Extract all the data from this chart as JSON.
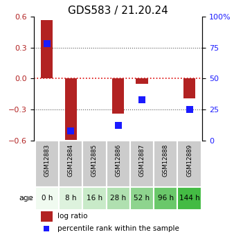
{
  "title": "GDS583 / 21.20.24",
  "samples": [
    "GSM12883",
    "GSM12884",
    "GSM12885",
    "GSM12886",
    "GSM12887",
    "GSM12888",
    "GSM12889"
  ],
  "ages": [
    "0 h",
    "8 h",
    "16 h",
    "28 h",
    "52 h",
    "96 h",
    "144 h"
  ],
  "log_ratio": [
    0.57,
    -0.62,
    0.0,
    -0.34,
    -0.05,
    0.0,
    -0.19
  ],
  "percentile_rank": [
    78,
    8,
    null,
    12,
    33,
    null,
    25
  ],
  "ylim_left": [
    -0.6,
    0.6
  ],
  "ylim_right": [
    0,
    100
  ],
  "yticks_left": [
    -0.6,
    -0.3,
    0.0,
    0.3,
    0.6
  ],
  "yticks_right": [
    0,
    25,
    50,
    75,
    100
  ],
  "bar_color": "#b22222",
  "dot_color": "#1a1aff",
  "age_colors": [
    "#f0faf0",
    "#ddf2dd",
    "#c8eac8",
    "#b0e0b0",
    "#8ed48e",
    "#6ac86a",
    "#44bb44"
  ],
  "sample_box_color": "#cccccc",
  "legend_log_ratio": "log ratio",
  "legend_percentile": "percentile rank within the sample",
  "age_label": "age",
  "hline_color_zero": "#dd0000",
  "hline_color_grid": "#555555",
  "title_fontsize": 11,
  "bar_width": 0.5
}
